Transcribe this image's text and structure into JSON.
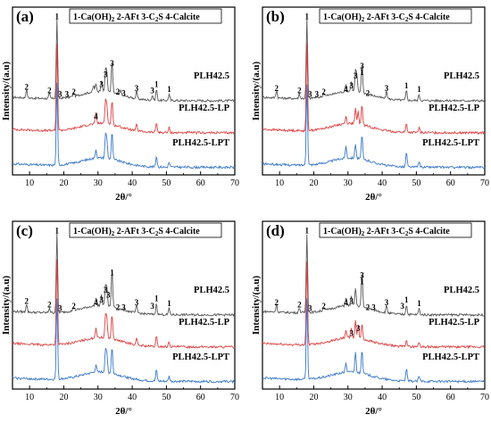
{
  "chart_data": [
    {
      "panel": "(a)",
      "type": "line",
      "legend": "1-Ca(OH)2 2-AFt 3-C2S 4-Calcite",
      "xlabel": "2θ/°",
      "ylabel": "Intensity/(a.u)",
      "xlim": [
        5,
        70
      ],
      "xticks": [
        10,
        20,
        30,
        40,
        50,
        60,
        70
      ],
      "series": [
        {
          "name": "PLH42.5",
          "color": "#555555",
          "baseline": 3.0,
          "peaks": [
            [
              9.1,
              0.35
            ],
            [
              15.8,
              0.2
            ],
            [
              18.0,
              3.2
            ],
            [
              22.9,
              0.15
            ],
            [
              28.7,
              0.25
            ],
            [
              29.4,
              0.3
            ],
            [
              31.0,
              0.45
            ],
            [
              32.2,
              0.85
            ],
            [
              32.6,
              0.7
            ],
            [
              34.1,
              1.3
            ],
            [
              36.6,
              0.2
            ],
            [
              41.3,
              0.3
            ],
            [
              45.9,
              0.2
            ],
            [
              47.1,
              0.45
            ],
            [
              50.8,
              0.25
            ]
          ]
        },
        {
          "name": "PLH42.5-LP",
          "color": "#e04040",
          "baseline": 1.7,
          "peaks": [
            [
              18.0,
              3.5
            ],
            [
              29.4,
              0.45
            ],
            [
              32.2,
              0.9
            ],
            [
              32.6,
              0.7
            ],
            [
              34.1,
              1.0
            ],
            [
              41.3,
              0.25
            ],
            [
              47.1,
              0.4
            ],
            [
              50.8,
              0.2
            ]
          ]
        },
        {
          "name": "PLH42.5-LPT",
          "color": "#3a78c9",
          "baseline": 0.3,
          "peaks": [
            [
              18.0,
              3.3
            ],
            [
              29.4,
              0.35
            ],
            [
              32.2,
              0.9
            ],
            [
              32.6,
              0.7
            ],
            [
              34.1,
              1.1
            ],
            [
              47.1,
              0.45
            ],
            [
              50.8,
              0.2
            ]
          ]
        }
      ],
      "annotations": [
        {
          "text": "1",
          "x": 18.0,
          "series": 0,
          "peak": 3.2
        },
        {
          "text": "2",
          "x": 9.1,
          "series": 0,
          "peak": 0.35
        },
        {
          "text": "2",
          "x": 15.8,
          "series": 0,
          "peak": 0.2
        },
        {
          "text": "3",
          "x": 18.9,
          "series": 0,
          "peak": 0.05
        },
        {
          "text": "3",
          "x": 20.9,
          "series": 0,
          "peak": 0.05
        },
        {
          "text": "2",
          "x": 22.9,
          "series": 0,
          "peak": 0.15
        },
        {
          "text": "3",
          "x": 31.0,
          "series": 0,
          "peak": 0.45
        },
        {
          "text": "3",
          "x": 32.2,
          "series": 0,
          "peak": 0.85
        },
        {
          "text": "3",
          "x": 34.1,
          "series": 0,
          "peak": 1.3
        },
        {
          "text": "2",
          "x": 35.8,
          "series": 0,
          "peak": 0.15
        },
        {
          "text": "3",
          "x": 37.5,
          "series": 0,
          "peak": 0.1
        },
        {
          "text": "3",
          "x": 41.3,
          "series": 0,
          "peak": 0.3
        },
        {
          "text": "3",
          "x": 45.9,
          "series": 0,
          "peak": 0.2
        },
        {
          "text": "1",
          "x": 47.1,
          "series": 0,
          "peak": 0.45
        },
        {
          "text": "1",
          "x": 50.8,
          "series": 0,
          "peak": 0.25
        },
        {
          "text": "4",
          "x": 29.4,
          "series": 1,
          "peak": 0.45
        }
      ]
    },
    {
      "panel": "(b)",
      "type": "line",
      "legend": "1-Ca(OH)2 2-AFt 3-C2S 4-Calcite",
      "xlabel": "2θ/°",
      "ylabel": "Intensity/(a.u)",
      "xlim": [
        5,
        70
      ],
      "xticks": [
        10,
        20,
        30,
        40,
        50,
        60,
        70
      ],
      "series": [
        {
          "name": "PLH42.5",
          "color": "#555555",
          "baseline": 3.0,
          "peaks": [
            [
              9.1,
              0.3
            ],
            [
              15.8,
              0.2
            ],
            [
              18.0,
              3.2
            ],
            [
              22.9,
              0.15
            ],
            [
              29.4,
              0.25
            ],
            [
              31.0,
              0.4
            ],
            [
              32.2,
              0.8
            ],
            [
              32.6,
              0.6
            ],
            [
              34.1,
              1.2
            ],
            [
              41.3,
              0.3
            ],
            [
              47.1,
              0.4
            ],
            [
              50.8,
              0.25
            ]
          ]
        },
        {
          "name": "PLH42.5-LP",
          "color": "#e04040",
          "baseline": 1.7,
          "peaks": [
            [
              18.0,
              3.5
            ],
            [
              29.4,
              0.3
            ],
            [
              32.2,
              0.6
            ],
            [
              33.0,
              0.5
            ],
            [
              34.1,
              0.8
            ],
            [
              47.1,
              0.35
            ],
            [
              50.8,
              0.2
            ]
          ]
        },
        {
          "name": "PLH42.5-LPT",
          "color": "#3a78c9",
          "baseline": 0.3,
          "peaks": [
            [
              18.0,
              3.3
            ],
            [
              29.4,
              0.5
            ],
            [
              32.2,
              0.6
            ],
            [
              34.1,
              1.0
            ],
            [
              47.1,
              0.6
            ],
            [
              50.8,
              0.25
            ]
          ]
        }
      ],
      "annotations": [
        {
          "text": "1",
          "x": 18.0,
          "series": 0,
          "peak": 3.2
        },
        {
          "text": "2",
          "x": 9.1,
          "series": 0,
          "peak": 0.3
        },
        {
          "text": "2",
          "x": 15.8,
          "series": 0,
          "peak": 0.2
        },
        {
          "text": "3",
          "x": 18.9,
          "series": 0,
          "peak": 0.05
        },
        {
          "text": "3",
          "x": 20.9,
          "series": 0,
          "peak": 0.05
        },
        {
          "text": "2",
          "x": 22.9,
          "series": 0,
          "peak": 0.15
        },
        {
          "text": "4",
          "x": 29.4,
          "series": 0,
          "peak": 0.25
        },
        {
          "text": "3",
          "x": 31.0,
          "series": 0,
          "peak": 0.4
        },
        {
          "text": "3",
          "x": 32.2,
          "series": 0,
          "peak": 0.8
        },
        {
          "text": "3",
          "x": 34.1,
          "series": 0,
          "peak": 1.2
        },
        {
          "text": "1",
          "x": 34.1,
          "series": 0,
          "peak": 0.95
        },
        {
          "text": "2",
          "x": 35.8,
          "series": 0,
          "peak": 0.1
        },
        {
          "text": "3",
          "x": 41.3,
          "series": 0,
          "peak": 0.3
        },
        {
          "text": "1",
          "x": 47.1,
          "series": 0,
          "peak": 0.4
        },
        {
          "text": "1",
          "x": 50.8,
          "series": 0,
          "peak": 0.25
        }
      ]
    },
    {
      "panel": "(c)",
      "type": "line",
      "legend": "1-Ca(OH)2 2-AFt 3-C2S 4-Calcite",
      "xlabel": "2θ/°",
      "ylabel": "Intensity/(a.u)",
      "xlim": [
        5,
        70
      ],
      "xticks": [
        10,
        20,
        30,
        40,
        50,
        60,
        70
      ],
      "series": [
        {
          "name": "PLH42.5",
          "color": "#555555",
          "baseline": 3.0,
          "peaks": [
            [
              9.1,
              0.35
            ],
            [
              15.8,
              0.2
            ],
            [
              18.0,
              3.2
            ],
            [
              22.9,
              0.15
            ],
            [
              29.4,
              0.3
            ],
            [
              31.0,
              0.4
            ],
            [
              32.2,
              0.8
            ],
            [
              32.6,
              0.65
            ],
            [
              34.1,
              1.5
            ],
            [
              41.3,
              0.3
            ],
            [
              47.1,
              0.45
            ],
            [
              50.8,
              0.25
            ]
          ]
        },
        {
          "name": "PLH42.5-LP",
          "color": "#e04040",
          "baseline": 1.7,
          "peaks": [
            [
              18.0,
              3.5
            ],
            [
              29.4,
              0.4
            ],
            [
              32.2,
              0.9
            ],
            [
              32.6,
              0.7
            ],
            [
              34.1,
              1.0
            ],
            [
              41.3,
              0.25
            ],
            [
              47.1,
              0.4
            ],
            [
              50.8,
              0.2
            ]
          ]
        },
        {
          "name": "PLH42.5-LPT",
          "color": "#3a78c9",
          "baseline": 0.3,
          "peaks": [
            [
              18.0,
              3.3
            ],
            [
              29.4,
              0.3
            ],
            [
              32.2,
              0.9
            ],
            [
              32.6,
              0.7
            ],
            [
              34.1,
              1.1
            ],
            [
              47.1,
              0.45
            ],
            [
              50.8,
              0.2
            ]
          ]
        }
      ],
      "annotations": [
        {
          "text": "1",
          "x": 18.0,
          "series": 0,
          "peak": 3.2
        },
        {
          "text": "2",
          "x": 9.1,
          "series": 0,
          "peak": 0.35
        },
        {
          "text": "2",
          "x": 15.8,
          "series": 0,
          "peak": 0.2
        },
        {
          "text": "3",
          "x": 18.9,
          "series": 0,
          "peak": 0.05
        },
        {
          "text": "2",
          "x": 22.9,
          "series": 0,
          "peak": 0.15
        },
        {
          "text": "4",
          "x": 29.4,
          "series": 0,
          "peak": 0.3
        },
        {
          "text": "3",
          "x": 31.0,
          "series": 0,
          "peak": 0.4
        },
        {
          "text": "3",
          "x": 32.2,
          "series": 0,
          "peak": 0.8
        },
        {
          "text": "3",
          "x": 33.0,
          "series": 0,
          "peak": 0.6
        },
        {
          "text": "1",
          "x": 34.1,
          "series": 0,
          "peak": 1.5
        },
        {
          "text": "2",
          "x": 35.8,
          "series": 0,
          "peak": 0.1
        },
        {
          "text": "3",
          "x": 37.5,
          "series": 0,
          "peak": 0.1
        },
        {
          "text": "3",
          "x": 41.3,
          "series": 0,
          "peak": 0.3
        },
        {
          "text": "3",
          "x": 45.9,
          "series": 0,
          "peak": 0.15
        },
        {
          "text": "1",
          "x": 47.1,
          "series": 0,
          "peak": 0.45
        },
        {
          "text": "1",
          "x": 50.8,
          "series": 0,
          "peak": 0.25
        }
      ]
    },
    {
      "panel": "(d)",
      "type": "line",
      "legend": "1-Ca(OH)2 2-AFt 3-C2S 4-Calcite",
      "xlabel": "2θ/°",
      "ylabel": "Intensity/(a.u)",
      "xlim": [
        5,
        70
      ],
      "xticks": [
        10,
        20,
        30,
        40,
        50,
        60,
        70
      ],
      "series": [
        {
          "name": "PLH42.5",
          "color": "#555555",
          "baseline": 3.0,
          "peaks": [
            [
              9.1,
              0.3
            ],
            [
              15.8,
              0.2
            ],
            [
              18.0,
              3.2
            ],
            [
              22.9,
              0.15
            ],
            [
              29.4,
              0.3
            ],
            [
              31.0,
              0.35
            ],
            [
              32.2,
              0.7
            ],
            [
              34.1,
              1.4
            ],
            [
              41.3,
              0.3
            ],
            [
              47.1,
              0.4
            ],
            [
              50.8,
              0.25
            ]
          ]
        },
        {
          "name": "PLH42.5-LP",
          "color": "#e04040",
          "baseline": 1.7,
          "peaks": [
            [
              18.0,
              3.4
            ],
            [
              29.4,
              0.3
            ],
            [
              31.0,
              0.35
            ],
            [
              32.2,
              0.7
            ],
            [
              33.0,
              0.55
            ],
            [
              34.1,
              0.6
            ],
            [
              47.1,
              0.3
            ],
            [
              50.8,
              0.2
            ]
          ]
        },
        {
          "name": "PLH42.5-LPT",
          "color": "#3a78c9",
          "baseline": 0.3,
          "peaks": [
            [
              18.0,
              3.3
            ],
            [
              29.4,
              0.4
            ],
            [
              32.2,
              0.8
            ],
            [
              34.1,
              1.0
            ],
            [
              47.1,
              0.5
            ],
            [
              50.8,
              0.2
            ]
          ]
        }
      ],
      "annotations": [
        {
          "text": "1",
          "x": 18.0,
          "series": 0,
          "peak": 3.2
        },
        {
          "text": "2",
          "x": 9.1,
          "series": 0,
          "peak": 0.3
        },
        {
          "text": "2",
          "x": 15.8,
          "series": 0,
          "peak": 0.2
        },
        {
          "text": "3",
          "x": 18.9,
          "series": 0,
          "peak": 0.05
        },
        {
          "text": "2",
          "x": 22.9,
          "series": 0,
          "peak": 0.15
        },
        {
          "text": "4",
          "x": 29.4,
          "series": 0,
          "peak": 0.3
        },
        {
          "text": "3",
          "x": 31.0,
          "series": 0,
          "peak": 0.35
        },
        {
          "text": "3",
          "x": 34.1,
          "series": 0,
          "peak": 1.4
        },
        {
          "text": "1",
          "x": 34.1,
          "series": 0,
          "peak": 1.15
        },
        {
          "text": "2",
          "x": 35.8,
          "series": 0,
          "peak": 0.1
        },
        {
          "text": "3",
          "x": 37.5,
          "series": 0,
          "peak": 0.1
        },
        {
          "text": "3",
          "x": 41.3,
          "series": 0,
          "peak": 0.3
        },
        {
          "text": "3",
          "x": 45.9,
          "series": 0,
          "peak": 0.15
        },
        {
          "text": "1",
          "x": 47.1,
          "series": 0,
          "peak": 0.4
        },
        {
          "text": "1",
          "x": 50.8,
          "series": 0,
          "peak": 0.25
        },
        {
          "text": "3",
          "x": 31.0,
          "series": 1,
          "peak": 0.35
        },
        {
          "text": "3",
          "x": 33.0,
          "series": 1,
          "peak": 0.55
        }
      ]
    }
  ]
}
